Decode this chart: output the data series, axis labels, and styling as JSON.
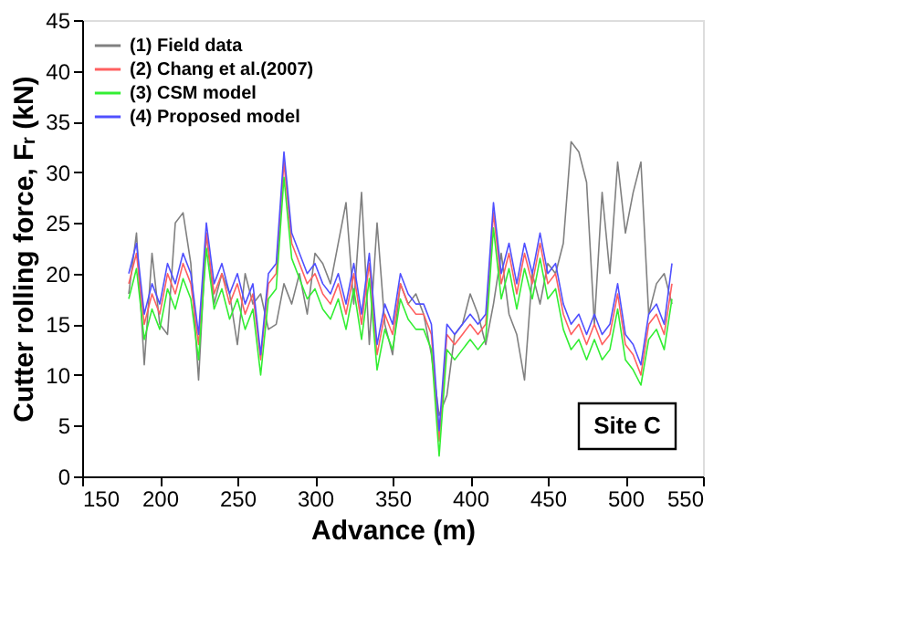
{
  "chart_data": {
    "type": "line",
    "xlabel": "Advance (m)",
    "ylabel": "Cutter rolling force, Fᵣ (kN)",
    "xlim": [
      150,
      550
    ],
    "xticks": [
      150,
      200,
      250,
      300,
      350,
      400,
      450,
      500,
      550
    ],
    "ylim": [
      0,
      45
    ],
    "yticks": [
      0,
      5,
      10,
      15,
      20,
      25,
      30,
      35,
      40,
      45
    ],
    "grid": false,
    "legend": "top left",
    "marker": "none",
    "line_style": "solid",
    "annotations": [
      "Site C"
    ],
    "x": [
      180,
      185,
      190,
      195,
      200,
      205,
      210,
      215,
      220,
      225,
      230,
      235,
      240,
      245,
      250,
      255,
      260,
      265,
      270,
      275,
      280,
      285,
      290,
      295,
      300,
      305,
      310,
      315,
      320,
      325,
      330,
      335,
      340,
      345,
      350,
      355,
      360,
      365,
      370,
      375,
      380,
      385,
      390,
      395,
      400,
      405,
      410,
      415,
      420,
      425,
      430,
      435,
      440,
      445,
      450,
      455,
      460,
      465,
      470,
      475,
      480,
      485,
      490,
      495,
      500,
      505,
      510,
      515,
      520,
      525,
      530
    ],
    "series": [
      {
        "name": "(1) Field data",
        "color": "#808080",
        "values": [
          18,
          24,
          11,
          22,
          15,
          14,
          25,
          26,
          21,
          9.5,
          24,
          17,
          20,
          18,
          13,
          20,
          17,
          18,
          14.5,
          15,
          19,
          17,
          20,
          16,
          22,
          21,
          19,
          23,
          27,
          17,
          28,
          13,
          25,
          15,
          12,
          19,
          17,
          18,
          16,
          12,
          6,
          8,
          14,
          15,
          18,
          16,
          13,
          17,
          22,
          16,
          14,
          9.5,
          20,
          17,
          21,
          20,
          23,
          33,
          32,
          29,
          15,
          28,
          20,
          31,
          24,
          28,
          31,
          16,
          19,
          20,
          17
        ]
      },
      {
        "name": "(2) Chang et al.(2007)",
        "color": "#ff6060",
        "values": [
          19,
          22,
          15,
          18,
          16,
          20,
          18,
          21,
          19,
          13,
          24,
          18,
          20,
          17,
          19,
          16,
          18,
          11.5,
          19,
          20,
          31,
          23,
          21,
          19,
          20,
          18,
          17,
          19,
          16,
          20,
          15,
          21,
          12,
          16,
          14,
          19,
          17,
          16,
          16,
          14,
          3.5,
          14,
          13,
          14,
          15,
          14,
          15,
          26,
          19,
          22,
          18,
          22,
          19,
          23,
          19,
          20,
          16,
          14,
          15,
          13,
          15,
          13,
          14,
          18,
          13,
          12,
          10,
          15,
          16,
          14,
          19
        ]
      },
      {
        "name": "(3) CSM model",
        "color": "#33ee33",
        "values": [
          17.5,
          20.5,
          13.5,
          16.5,
          14.5,
          18.5,
          16.5,
          19.5,
          17.5,
          11.5,
          22.5,
          16.5,
          18.5,
          15.5,
          17.5,
          14.5,
          16.5,
          10,
          17.5,
          18.5,
          29.5,
          21.5,
          19.5,
          17.5,
          18.5,
          16.5,
          15.5,
          17.5,
          14.5,
          18.5,
          13.5,
          19.5,
          10.5,
          14.5,
          12.5,
          17.5,
          15.5,
          14.5,
          14.5,
          12.5,
          2,
          12.5,
          11.5,
          12.5,
          13.5,
          12.5,
          13.5,
          24.5,
          17.5,
          20.5,
          16.5,
          20.5,
          17.5,
          21.5,
          17.5,
          18.5,
          14.5,
          12.5,
          13.5,
          11.5,
          13.5,
          11.5,
          12.5,
          16.5,
          11.5,
          10.5,
          9,
          13.5,
          14.5,
          12.5,
          17.5
        ]
      },
      {
        "name": "(4) Proposed model",
        "color": "#5050ff",
        "values": [
          20,
          23,
          16,
          19,
          17,
          21,
          19,
          22,
          20,
          14,
          25,
          19,
          21,
          18,
          20,
          17,
          19,
          12,
          20,
          21,
          32,
          24,
          22,
          20,
          21,
          19,
          18,
          20,
          17,
          21,
          16,
          22,
          13,
          17,
          15,
          20,
          18,
          17,
          17,
          15,
          4.5,
          15,
          14,
          15,
          16,
          15,
          16,
          27,
          20,
          23,
          19,
          23,
          20,
          24,
          20,
          21,
          17,
          15,
          16,
          14,
          16,
          14,
          15,
          19,
          14,
          13,
          11,
          16,
          17,
          15,
          21
        ]
      }
    ]
  }
}
